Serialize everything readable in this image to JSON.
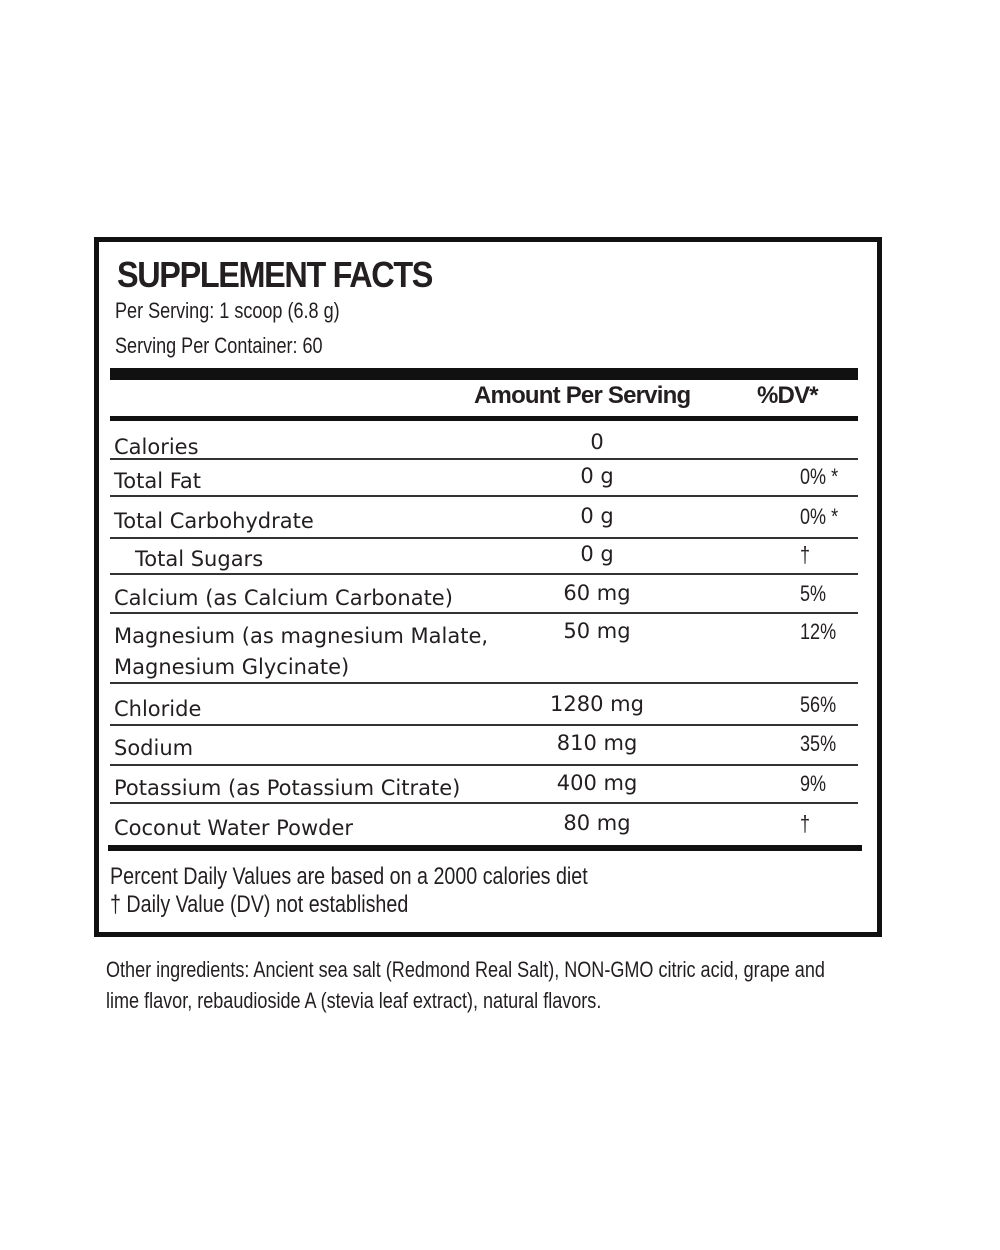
{
  "header": {
    "title": "SUPPLEMENT FACTS",
    "serving_size": "Per Serving: 1 scoop (6.8 g)",
    "servings_per_container": "Serving Per Container: 60"
  },
  "table": {
    "columns": [
      "Amount Per Serving",
      "%DV*"
    ],
    "rows": [
      {
        "name": "Calories",
        "amount": "0"
      },
      {
        "name": "Total Fat",
        "amount": "0 g",
        "dv": "0% *"
      },
      {
        "name": "Total Carbohydrate",
        "amount": "0 g",
        "dv": "0% *"
      },
      {
        "name": "Total Sugars",
        "amount": "0 g",
        "dv": "†",
        "indented": true
      },
      {
        "name": "Calcium (as Calcium Carbonate)",
        "amount": "60 mg",
        "dv": "5%"
      },
      {
        "name": "Magnesium (as magnesium Malate, Magnesium Glycinate)",
        "amount": "50 mg",
        "dv": "12%"
      },
      {
        "name": "Chloride",
        "amount": "1280 mg",
        "dv": "56%"
      },
      {
        "name": "Sodium",
        "amount": "810 mg",
        "dv": "35%"
      },
      {
        "name": "Potassium (as Potassium Citrate)",
        "amount": "400 mg",
        "dv": "9%"
      },
      {
        "name": "Coconut Water Powder",
        "amount": "80 mg",
        "dv": "†"
      }
    ]
  },
  "footnotes": [
    "Percent Daily Values are based on a 2000 calories diet",
    "† Daily Value (DV) not established"
  ],
  "other_ingredients": [
    "Other ingredients: Ancient sea salt (Redmond Real Salt), NON-GMO citric acid, grape and",
    "lime flavor, rebaudioside A (stevia leaf extract),  natural flavors."
  ]
}
